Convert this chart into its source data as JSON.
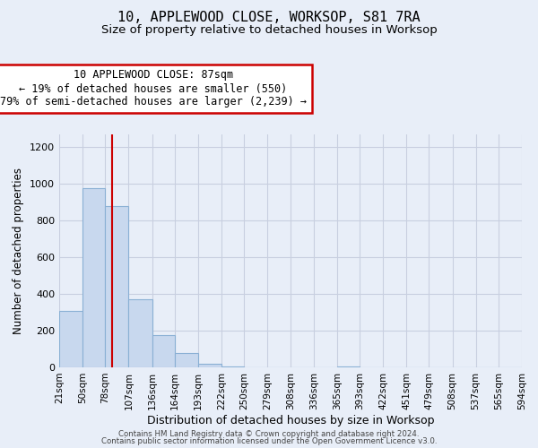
{
  "title": "10, APPLEWOOD CLOSE, WORKSOP, S81 7RA",
  "subtitle": "Size of property relative to detached houses in Worksop",
  "xlabel": "Distribution of detached houses by size in Worksop",
  "ylabel": "Number of detached properties",
  "bin_edges": [
    21,
    50,
    78,
    107,
    136,
    164,
    193,
    222,
    250,
    279,
    308,
    336,
    365,
    393,
    422,
    451,
    479,
    508,
    537,
    565,
    594
  ],
  "bar_heights": [
    310,
    975,
    880,
    370,
    175,
    80,
    20,
    5,
    0,
    0,
    0,
    0,
    5,
    0,
    0,
    0,
    0,
    0,
    0,
    0
  ],
  "bar_color": "#c8d8ee",
  "bar_edgecolor": "#8ab0d4",
  "vline_x": 87,
  "vline_color": "#cc0000",
  "ylim": [
    0,
    1270
  ],
  "yticks": [
    0,
    200,
    400,
    600,
    800,
    1000,
    1200
  ],
  "annotation_line1": "10 APPLEWOOD CLOSE: 87sqm",
  "annotation_line2": "← 19% of detached houses are smaller (550)",
  "annotation_line3": "79% of semi-detached houses are larger (2,239) →",
  "footer_line1": "Contains HM Land Registry data © Crown copyright and database right 2024.",
  "footer_line2": "Contains public sector information licensed under the Open Government Licence v3.0.",
  "background_color": "#e8eef8",
  "grid_color": "#c8cfe0",
  "title_fontsize": 11,
  "subtitle_fontsize": 9.5,
  "tick_label_fontsize": 7.5,
  "axis_label_fontsize": 9
}
